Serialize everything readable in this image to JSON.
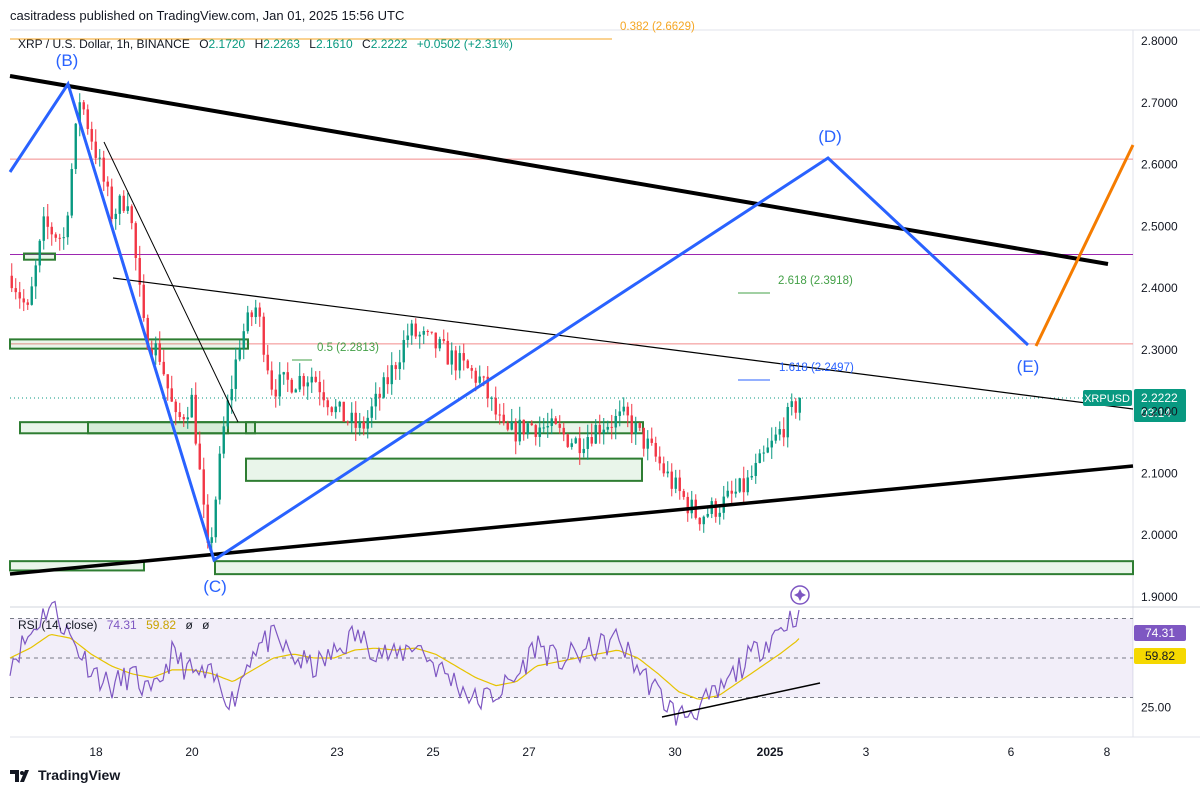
{
  "publisher": "casitradess published on TradingView.com, Jan 01, 2025 15:56 UTC",
  "legend": {
    "symbol": "XRP / U.S. Dollar, 1h, BINANCE",
    "open_label": "O",
    "open": "2.1720",
    "high_label": "H",
    "high": "2.2263",
    "low_label": "L",
    "low": "2.1610",
    "close_label": "C",
    "close": "2.2222",
    "change": "+0.0502 (+2.31%)"
  },
  "rsi_legend": {
    "label": "RSI (14, close)",
    "rsi": "74.31",
    "ma": "59.82",
    "n1": "ø",
    "n2": "ø"
  },
  "footer": {
    "brand": "TradingView"
  },
  "colors": {
    "up": "#089981",
    "down": "#f23645",
    "wave": "#2962ff",
    "orange": "#f57c00",
    "zone": "#2e7d32",
    "rsi": "#7e57c2",
    "rsi_ma": "#e6c300"
  },
  "chart_data": [
    {
      "type": "candlestick",
      "title": "XRP / U.S. Dollar, 1h, BINANCE",
      "ylim": [
        1.87,
        2.83
      ],
      "y_ticks": [
        "2.8000",
        "2.7000",
        "2.6000",
        "2.5000",
        "2.4000",
        "2.3000",
        "2.2000",
        "2.1000",
        "2.0000",
        "1.9000"
      ],
      "x_ticks": [
        "18",
        "20",
        "23",
        "25",
        "27",
        "30",
        "2025",
        "3",
        "6",
        "8"
      ],
      "price_tag": {
        "symbol": "XRPUSD",
        "value": "2.2222",
        "countdown": "03:14"
      },
      "price_path": [
        {
          "x": "Dec 16 06:00",
          "y": 2.42
        },
        {
          "x": "Dec 16 14:00",
          "y": 2.36
        },
        {
          "x": "Dec 16 22:00",
          "y": 2.5
        },
        {
          "x": "Dec 17 08:00",
          "y": 2.48
        },
        {
          "x": "Dec 17 16:00",
          "y": 2.71
        },
        {
          "x": "Dec 18 00:00",
          "y": 2.62
        },
        {
          "x": "Dec 18 08:00",
          "y": 2.52
        },
        {
          "x": "Dec 18 16:00",
          "y": 2.55
        },
        {
          "x": "Dec 19 00:00",
          "y": 2.33
        },
        {
          "x": "Dec 19 08:00",
          "y": 2.29
        },
        {
          "x": "Dec 19 16:00",
          "y": 2.18
        },
        {
          "x": "Dec 20 00:00",
          "y": 2.22
        },
        {
          "x": "Dec 20 08:00",
          "y": 1.96
        },
        {
          "x": "Dec 20 16:00",
          "y": 2.18
        },
        {
          "x": "Dec 21 00:00",
          "y": 2.32
        },
        {
          "x": "Dec 21 08:00",
          "y": 2.37
        },
        {
          "x": "Dec 21 16:00",
          "y": 2.24
        },
        {
          "x": "Dec 22 12:00",
          "y": 2.26
        },
        {
          "x": "Dec 23 00:00",
          "y": 2.2
        },
        {
          "x": "Dec 23 12:00",
          "y": 2.17
        },
        {
          "x": "Dec 24 00:00",
          "y": 2.24
        },
        {
          "x": "Dec 24 12:00",
          "y": 2.33
        },
        {
          "x": "Dec 25 00:00",
          "y": 2.31
        },
        {
          "x": "Dec 25 12:00",
          "y": 2.28
        },
        {
          "x": "Dec 26 00:00",
          "y": 2.25
        },
        {
          "x": "Dec 26 12:00",
          "y": 2.16
        },
        {
          "x": "Dec 27 00:00",
          "y": 2.18
        },
        {
          "x": "Dec 27 12:00",
          "y": 2.17
        },
        {
          "x": "Dec 28 00:00",
          "y": 2.15
        },
        {
          "x": "Dec 28 12:00",
          "y": 2.18
        },
        {
          "x": "Dec 29 00:00",
          "y": 2.19
        },
        {
          "x": "Dec 29 12:00",
          "y": 2.14
        },
        {
          "x": "Dec 30 00:00",
          "y": 2.08
        },
        {
          "x": "Dec 30 12:00",
          "y": 2.03
        },
        {
          "x": "Dec 31 00:00",
          "y": 2.05
        },
        {
          "x": "Dec 31 12:00",
          "y": 2.08
        },
        {
          "x": "Jan 01 00:00",
          "y": 2.14
        },
        {
          "x": "Jan 01 15:00",
          "y": 2.2222
        }
      ],
      "wave_labels": [
        "(B)",
        "(C)",
        "(D)",
        "(E)"
      ],
      "fib_labels": [
        {
          "text": "0.5 (2.2813)",
          "price": 2.2813
        },
        {
          "text": "2.618 (2.3918)",
          "price": 2.3918
        },
        {
          "text": "1.618 (2.2497)",
          "price": 2.2497
        },
        {
          "text": "0.382 (2.6629)",
          "price": 2.6629
        }
      ],
      "horizontal_levels": [
        2.6088,
        2.4545,
        2.3098
      ]
    },
    {
      "type": "line",
      "title": "RSI (14, close)",
      "ylim": [
        10,
        90
      ],
      "y_ticks": [
        "25.00",
        "50.00"
      ],
      "current": {
        "rsi": "74.31",
        "ma": "59.82"
      },
      "series": [
        {
          "name": "RSI",
          "values": [
            48,
            62,
            78,
            60,
            45,
            35,
            42,
            30,
            52,
            42,
            40,
            28,
            55,
            60,
            50,
            45,
            52,
            62,
            55,
            50,
            58,
            46,
            38,
            28,
            32,
            40,
            58,
            48,
            52,
            55,
            60,
            45,
            32,
            20,
            25,
            32,
            45,
            55,
            65,
            74.31
          ]
        },
        {
          "name": "MA",
          "values": [
            50,
            55,
            62,
            60,
            52,
            46,
            42,
            40,
            44,
            44,
            42,
            38,
            44,
            50,
            52,
            50,
            50,
            54,
            55,
            54,
            55,
            52,
            46,
            40,
            36,
            38,
            46,
            48,
            50,
            52,
            54,
            50,
            42,
            33,
            29,
            31,
            38,
            45,
            52,
            59.82
          ]
        }
      ]
    }
  ]
}
